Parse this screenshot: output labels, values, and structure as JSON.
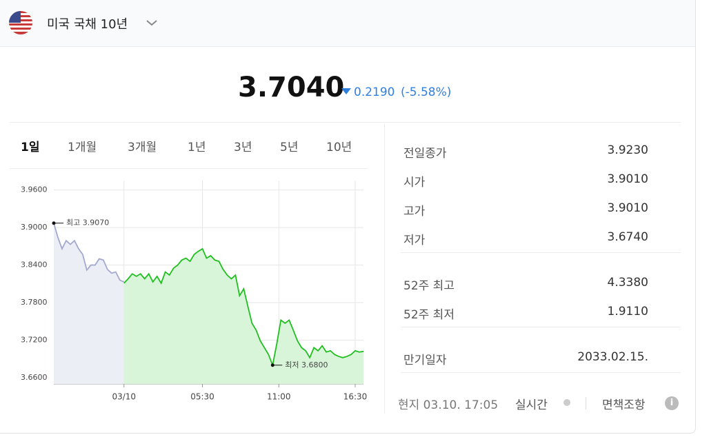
{
  "header": {
    "title": "미국 국채 10년"
  },
  "quote": {
    "price": "3.7040",
    "change": "0.2190",
    "change_pct": "(-5.58%)"
  },
  "tabs": [
    "1일",
    "1개월",
    "3개월",
    "1년",
    "3년",
    "5년",
    "10년"
  ],
  "chart_data": {
    "type": "line",
    "xlim": [
      0,
      75
    ],
    "ylim": [
      3.65,
      3.975
    ],
    "xticks": [
      {
        "value": 17,
        "label": "03/10"
      },
      {
        "value": 36,
        "label": "05:30"
      },
      {
        "value": 54.5,
        "label": "11:00"
      },
      {
        "value": 73,
        "label": "16:30"
      }
    ],
    "yticks": [
      {
        "value": 3.66,
        "label": "3.6600"
      },
      {
        "value": 3.72,
        "label": "3.7200"
      },
      {
        "value": 3.78,
        "label": "3.7800"
      },
      {
        "value": 3.84,
        "label": "3.8400"
      },
      {
        "value": 3.9,
        "label": "3.9000"
      },
      {
        "value": 3.96,
        "label": "3.9600"
      }
    ],
    "grid": true,
    "series": [
      {
        "color": "#a3a8cf",
        "fill": "#eceef5",
        "x": [
          0,
          1,
          2,
          3,
          4,
          5,
          6,
          7,
          8,
          9,
          10,
          11,
          12,
          13,
          14,
          15,
          16,
          17
        ],
        "values": [
          3.907,
          3.884,
          3.866,
          3.879,
          3.873,
          3.879,
          3.866,
          3.857,
          3.832,
          3.84,
          3.84,
          3.85,
          3.848,
          3.833,
          3.827,
          3.829,
          3.816,
          3.813
        ]
      },
      {
        "color": "#1fbf1f",
        "fill": "#d9f5d9",
        "x": [
          17,
          18,
          19,
          20,
          21,
          22,
          23,
          24,
          25,
          26,
          27,
          28,
          29,
          30,
          31,
          32,
          33,
          34,
          35,
          36,
          37,
          38,
          39,
          40,
          41,
          42,
          43,
          44,
          45,
          46,
          47,
          48,
          49,
          50,
          51,
          52,
          53,
          54,
          55,
          56,
          57,
          58,
          59,
          60,
          61,
          62,
          63,
          64,
          65,
          66,
          67,
          68,
          69,
          70,
          71,
          72,
          73,
          74,
          75
        ],
        "values": [
          3.811,
          3.818,
          3.826,
          3.822,
          3.826,
          3.818,
          3.826,
          3.813,
          3.822,
          3.811,
          3.829,
          3.824,
          3.835,
          3.84,
          3.848,
          3.851,
          3.846,
          3.857,
          3.862,
          3.866,
          3.851,
          3.855,
          3.848,
          3.846,
          3.833,
          3.824,
          3.818,
          3.824,
          3.791,
          3.802,
          3.774,
          3.747,
          3.736,
          3.719,
          3.708,
          3.697,
          3.68,
          3.714,
          3.752,
          3.747,
          3.752,
          3.736,
          3.719,
          3.708,
          3.703,
          3.692,
          3.708,
          3.703,
          3.711,
          3.701,
          3.703,
          3.697,
          3.694,
          3.692,
          3.694,
          3.697,
          3.703,
          3.701,
          3.702
        ]
      }
    ],
    "annotations": [
      {
        "label": "최고 3.9070",
        "x": 0,
        "y": 3.907
      },
      {
        "label": "최저 3.6800",
        "x": 53,
        "y": 3.68
      }
    ]
  },
  "stats": [
    [
      {
        "label": "전일종가",
        "value": "3.9230"
      },
      {
        "label": "시가",
        "value": "3.9010"
      },
      {
        "label": "고가",
        "value": "3.9010"
      },
      {
        "label": "저가",
        "value": "3.6740"
      }
    ],
    [
      {
        "label": "52주 최고",
        "value": "4.3380"
      },
      {
        "label": "52주 최저",
        "value": "1.9110"
      }
    ],
    [
      {
        "label": "만기일자",
        "value": "2033.02.15."
      }
    ]
  ],
  "footer": {
    "time": "현지 03.10. 17:05",
    "realtime": "실시간",
    "disclaimer": "면책조항"
  }
}
